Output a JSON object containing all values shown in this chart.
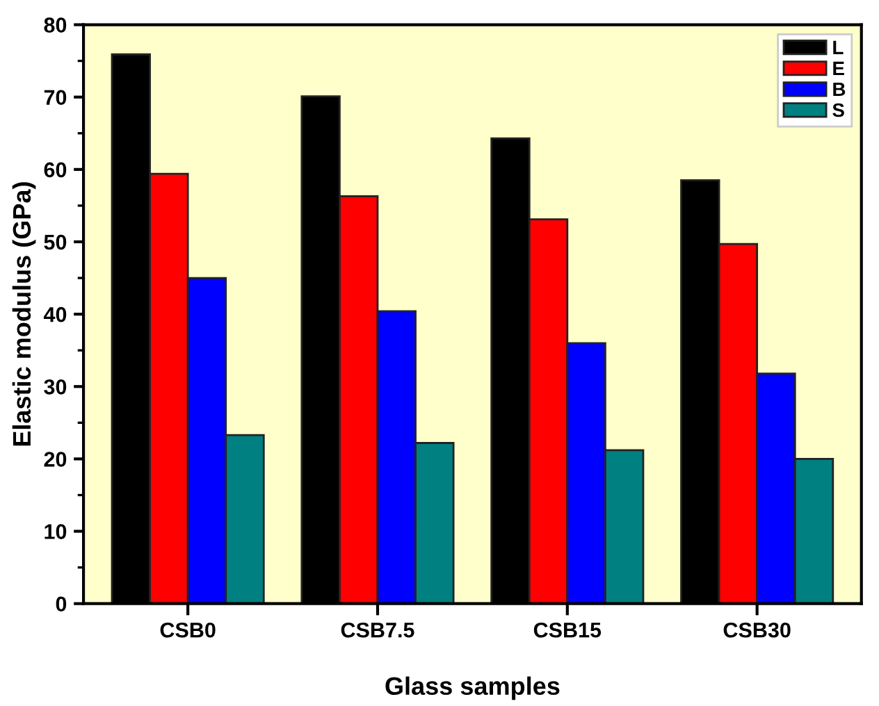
{
  "chart_data": {
    "type": "bar",
    "xlabel": "Glass samples",
    "ylabel": "Elastic modulus (GPa)",
    "categories": [
      "CSB0",
      "CSB7.5",
      "CSB15",
      "CSB30"
    ],
    "series": [
      {
        "name": "L",
        "color": "#000000",
        "values": [
          75.9,
          70.1,
          64.3,
          58.5
        ]
      },
      {
        "name": "E",
        "color": "#ff0000",
        "values": [
          59.4,
          56.3,
          53.1,
          49.7
        ]
      },
      {
        "name": "B",
        "color": "#0000ff",
        "values": [
          45.0,
          40.4,
          36.0,
          31.8
        ]
      },
      {
        "name": "S",
        "color": "#008080",
        "values": [
          23.3,
          22.2,
          21.2,
          20.0
        ]
      }
    ],
    "ylim": [
      0,
      80
    ],
    "yticks": [
      0,
      10,
      20,
      30,
      40,
      50,
      60,
      70,
      80
    ],
    "grid": false,
    "legend": "top right"
  }
}
